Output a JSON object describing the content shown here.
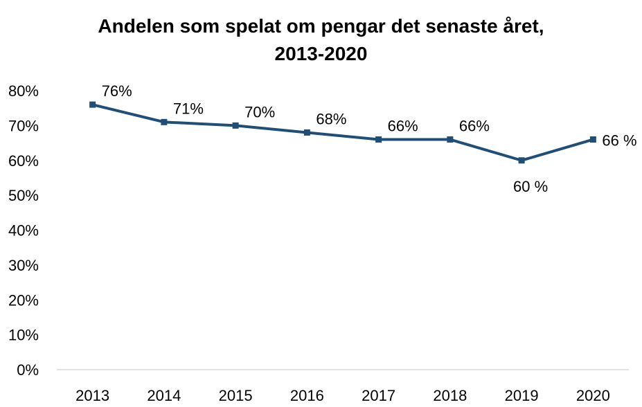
{
  "chart_data": {
    "type": "line",
    "title_line1": "Andelen som spelat om pengar det senaste året,",
    "title_line2": "2013-2020",
    "xlabel": "",
    "ylabel": "",
    "categories": [
      "2013",
      "2014",
      "2015",
      "2016",
      "2017",
      "2018",
      "2019",
      "2020"
    ],
    "series": [
      {
        "values": [
          76,
          71,
          70,
          68,
          66,
          66,
          60,
          66
        ],
        "data_labels": [
          "76%",
          "71%",
          "70%",
          "68%",
          "66%",
          "66%",
          "60 %",
          "66 %"
        ],
        "color": "#1f4e79"
      }
    ],
    "ylim": [
      0,
      80
    ],
    "y_ticks": [
      0,
      10,
      20,
      30,
      40,
      50,
      60,
      70,
      80
    ],
    "y_tick_labels": [
      "0%",
      "10%",
      "20%",
      "30%",
      "40%",
      "50%",
      "60%",
      "70%",
      "80%"
    ],
    "grid": false,
    "legend": "none"
  }
}
